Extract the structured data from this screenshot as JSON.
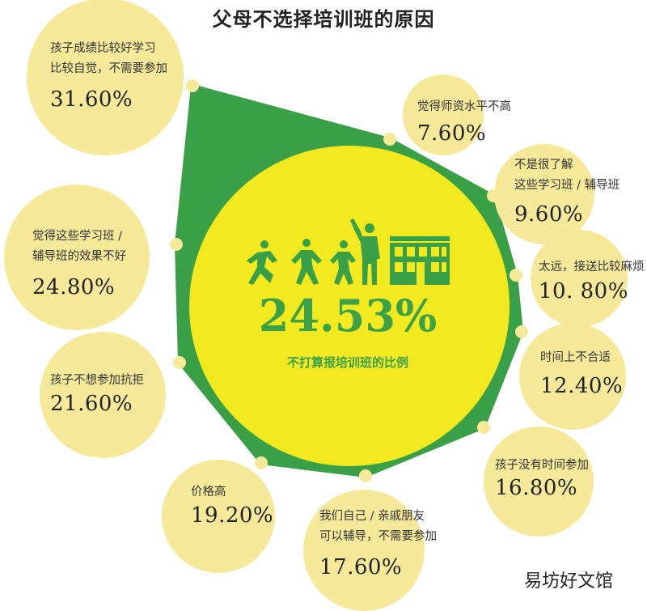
{
  "chart_data": {
    "type": "bubble-infographic",
    "title": "父母不选择培训班的原因",
    "center": {
      "value": "24.53%",
      "caption": "不打算报培训班的比例"
    },
    "reasons": [
      {
        "lines": [
          "孩子成绩比较好学习",
          "比较自觉，不需要参加"
        ],
        "value_label": "31.60%",
        "value": 31.6
      },
      {
        "lines": [
          "觉得师资水平不高"
        ],
        "value_label": "7.60%",
        "value": 7.6
      },
      {
        "lines": [
          "不是很了解",
          "这些学习班 / 辅导班"
        ],
        "value_label": "9.60%",
        "value": 9.6
      },
      {
        "lines": [
          "太远，接送比较麻烦"
        ],
        "value_label": "10. 80%",
        "value": 10.8
      },
      {
        "lines": [
          "时间上不合适"
        ],
        "value_label": "12.40%",
        "value": 12.4
      },
      {
        "lines": [
          "孩子没有时间参加"
        ],
        "value_label": "16.80%",
        "value": 16.8
      },
      {
        "lines": [
          "我们自己 / 亲戚朋友",
          "可以辅导，不需要参加"
        ],
        "value_label": "17.60%",
        "value": 17.6
      },
      {
        "lines": [
          "价格高"
        ],
        "value_label": "19.20%",
        "value": 19.2
      },
      {
        "lines": [
          "孩子不想参加抗拒"
        ],
        "value_label": "21.60%",
        "value": 21.6
      },
      {
        "lines": [
          "觉得这些学习班 /",
          "辅导班的效果不好"
        ],
        "value_label": "24.80%",
        "value": 24.8
      }
    ]
  },
  "colors": {
    "polygon": "#3aa047",
    "center_circle": "#f2ea1e",
    "bubble": "#f7e99a",
    "dot": "#f7e99a",
    "accent_text": "#3ba046"
  },
  "icons": [
    "running-figure-icon",
    "walking-figure-icon",
    "teacher-figure-icon",
    "school-building-icon"
  ],
  "watermark": "易坊好文馆"
}
